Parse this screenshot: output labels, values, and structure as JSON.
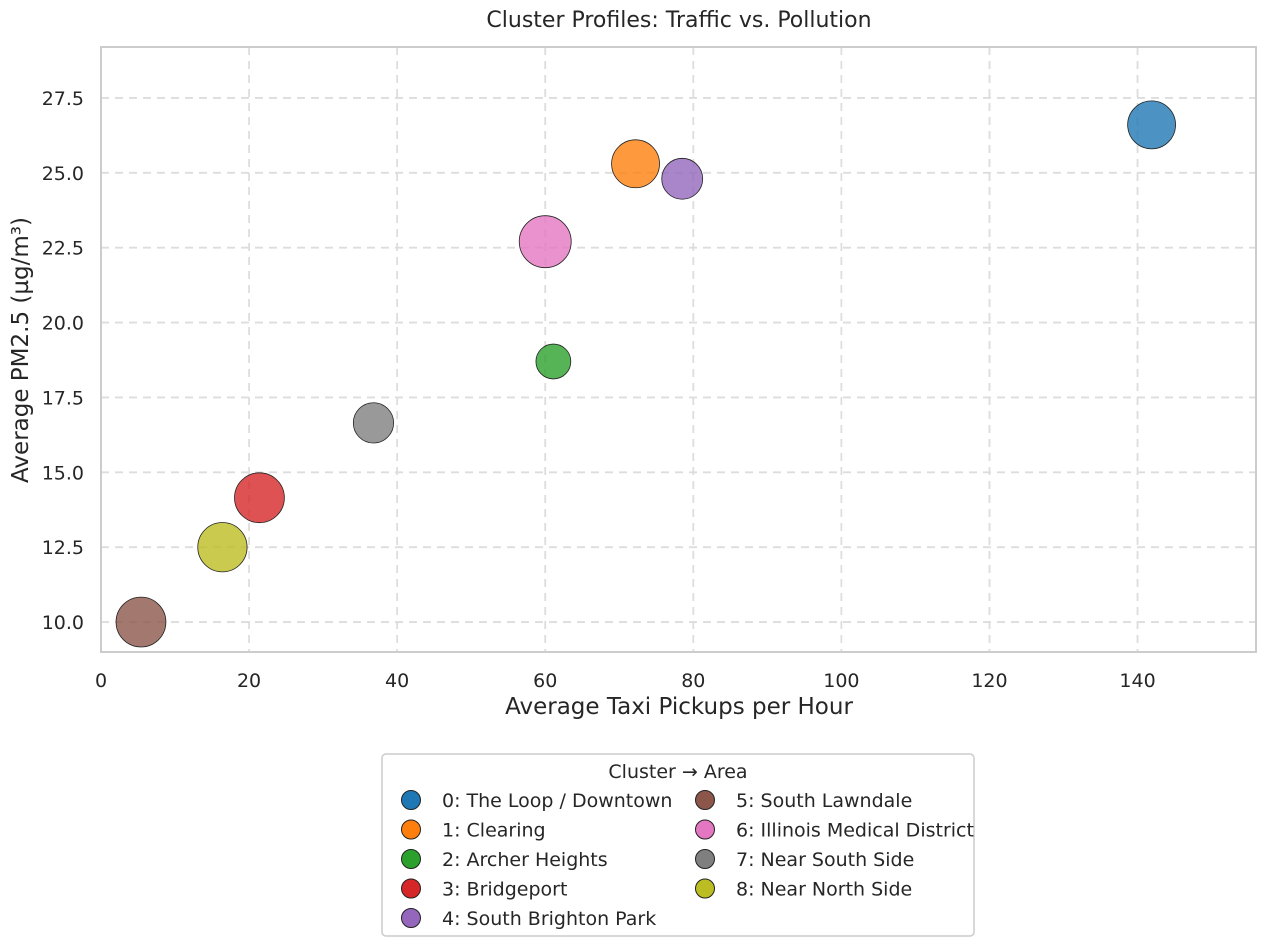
{
  "chart_data": {
    "type": "scatter",
    "title": "Cluster Profiles: Traffic vs. Pollution",
    "xlabel": "Average Taxi Pickups per Hour",
    "ylabel": "Average PM2.5 (µg/m³)",
    "xlim": [
      0,
      156
    ],
    "ylim": [
      9.0,
      29.2
    ],
    "x_ticks": [
      0,
      20,
      40,
      60,
      80,
      100,
      120,
      140
    ],
    "x_tick_labels": [
      "0",
      "20",
      "40",
      "60",
      "80",
      "100",
      "120",
      "140"
    ],
    "y_ticks": [
      10.0,
      12.5,
      15.0,
      17.5,
      20.0,
      22.5,
      25.0,
      27.5
    ],
    "y_tick_labels": [
      "10.0",
      "12.5",
      "15.0",
      "17.5",
      "20.0",
      "22.5",
      "25.0",
      "27.5"
    ],
    "grid": true,
    "bubble_size_note": "marker area varies by cluster",
    "points": [
      {
        "cluster": 0,
        "x": 141.9,
        "y": 26.6,
        "relative_size": 0.85,
        "color": "#1f77b4"
      },
      {
        "cluster": 1,
        "x": 72.2,
        "y": 25.3,
        "relative_size": 0.85,
        "color": "#ff7f0e"
      },
      {
        "cluster": 2,
        "x": 61.1,
        "y": 18.7,
        "relative_size": 0.45,
        "color": "#2ca02c"
      },
      {
        "cluster": 3,
        "x": 21.4,
        "y": 14.15,
        "relative_size": 0.92,
        "color": "#d62728"
      },
      {
        "cluster": 4,
        "x": 78.5,
        "y": 24.8,
        "relative_size": 0.62,
        "color": "#9467bd"
      },
      {
        "cluster": 5,
        "x": 5.4,
        "y": 10.0,
        "relative_size": 0.92,
        "color": "#8c564b"
      },
      {
        "cluster": 6,
        "x": 60.0,
        "y": 22.7,
        "relative_size": 1.0,
        "color": "#e377c2"
      },
      {
        "cluster": 7,
        "x": 36.8,
        "y": 16.65,
        "relative_size": 0.6,
        "color": "#7f7f7f"
      },
      {
        "cluster": 8,
        "x": 16.4,
        "y": 12.5,
        "relative_size": 0.9,
        "color": "#bcbd22"
      }
    ],
    "legend": {
      "title": "Cluster → Area",
      "placement": "below",
      "columns": 2,
      "entries": [
        {
          "label": "0: The Loop / Downtown",
          "color": "#1f77b4"
        },
        {
          "label": "1: Clearing",
          "color": "#ff7f0e"
        },
        {
          "label": "2: Archer Heights",
          "color": "#2ca02c"
        },
        {
          "label": "3: Bridgeport",
          "color": "#d62728"
        },
        {
          "label": "4: South Brighton Park",
          "color": "#9467bd"
        },
        {
          "label": "5: South Lawndale",
          "color": "#8c564b"
        },
        {
          "label": "6: Illinois Medical District",
          "color": "#e377c2"
        },
        {
          "label": "7: Near South Side",
          "color": "#7f7f7f"
        },
        {
          "label": "8: Near North Side",
          "color": "#bcbd22"
        }
      ]
    }
  }
}
